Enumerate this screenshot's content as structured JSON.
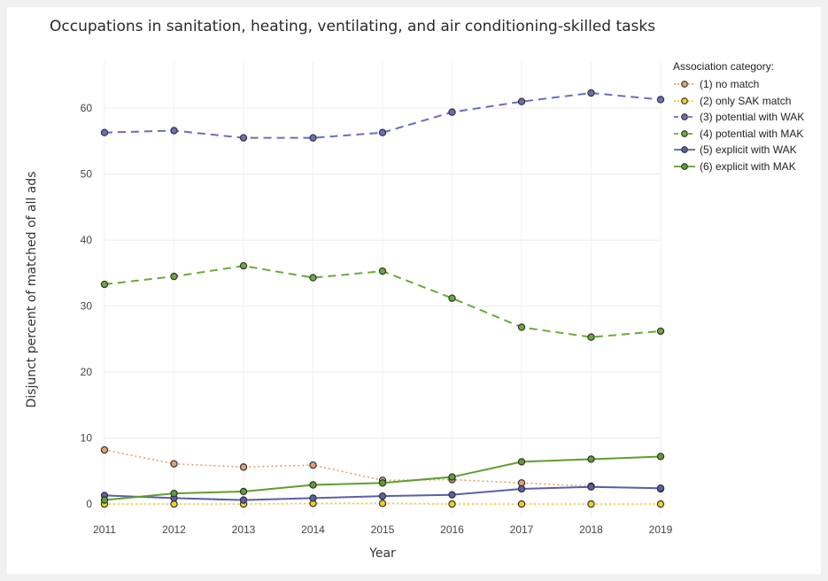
{
  "chart_data": {
    "type": "line",
    "title": "Occupations in sanitation, heating, ventilating, and air conditioning-skilled tasks",
    "xlabel": "Year",
    "ylabel": "Disjunct percent of matched of all ads",
    "x": [
      2011,
      2012,
      2013,
      2014,
      2015,
      2016,
      2017,
      2018,
      2019
    ],
    "xlim": [
      2011,
      2019
    ],
    "ylim": [
      -2,
      67
    ],
    "yticks": [
      0,
      10,
      20,
      30,
      40,
      50,
      60
    ],
    "grid": true,
    "legend_position": "right",
    "legend_title": "Association category:",
    "series": [
      {
        "name": "(1) no match",
        "color": "#e0a070",
        "dash": "dotted",
        "values": [
          8.2,
          6.1,
          5.6,
          5.9,
          3.6,
          3.7,
          3.2,
          2.7,
          2.3
        ]
      },
      {
        "name": "(2) only SAK match",
        "color": "#f0d020",
        "dash": "dotted",
        "values": [
          0.0,
          0.0,
          0.0,
          0.1,
          0.1,
          0.0,
          0.0,
          0.0,
          0.0
        ]
      },
      {
        "name": "(3) potential with WAK",
        "color": "#6a6ec0",
        "dash": "dashed",
        "values": [
          56.3,
          56.6,
          55.5,
          55.5,
          56.3,
          59.4,
          61.0,
          62.3,
          61.3
        ]
      },
      {
        "name": "(4) potential with MAK",
        "color": "#6aaa3a",
        "dash": "dashed",
        "values": [
          33.3,
          34.5,
          36.1,
          34.3,
          35.3,
          31.2,
          26.8,
          25.3,
          26.2
        ]
      },
      {
        "name": "(5) explicit with WAK",
        "color": "#5b5fa8",
        "dash": "solid",
        "values": [
          1.3,
          0.9,
          0.6,
          0.9,
          1.2,
          1.4,
          2.3,
          2.6,
          2.4
        ]
      },
      {
        "name": "(6) explicit with MAK",
        "color": "#5f9e30",
        "dash": "solid",
        "values": [
          0.6,
          1.6,
          1.9,
          2.9,
          3.2,
          4.1,
          6.4,
          6.8,
          7.2
        ]
      }
    ]
  }
}
